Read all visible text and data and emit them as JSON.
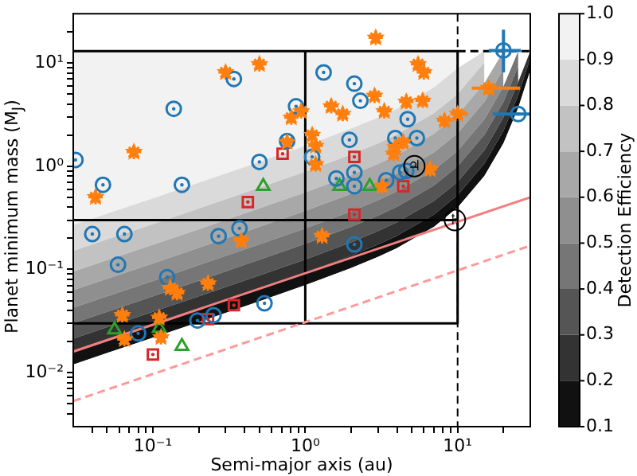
{
  "chart_data": {
    "type": "scatter",
    "log": "xy",
    "stacked": true,
    "grid": false,
    "legend": false,
    "xlabel": "Semi-major axis (au)",
    "ylabel": "Planet minimum mass (M$_{J}$)",
    "clabel": "Detection Efficiency",
    "xlim": [
      0.03,
      30
    ],
    "ylim": [
      0.003,
      30
    ],
    "xticks": [
      {
        "value": 0.04,
        "label": null
      },
      {
        "value": 0.05,
        "label": null
      },
      {
        "value": 0.06,
        "label": null
      },
      {
        "value": 0.07,
        "label": null
      },
      {
        "value": 0.08,
        "label": null
      },
      {
        "value": 0.09,
        "label": null
      },
      {
        "value": 0.1,
        "label": "10⁻¹"
      },
      {
        "value": 0.2,
        "label": null
      },
      {
        "value": 0.3,
        "label": null
      },
      {
        "value": 0.4,
        "label": null
      },
      {
        "value": 0.5,
        "label": null
      },
      {
        "value": 0.6,
        "label": null
      },
      {
        "value": 0.7,
        "label": null
      },
      {
        "value": 0.8,
        "label": null
      },
      {
        "value": 0.9,
        "label": null
      },
      {
        "value": 1,
        "label": "10⁰"
      },
      {
        "value": 2,
        "label": null
      },
      {
        "value": 3,
        "label": null
      },
      {
        "value": 4,
        "label": null
      },
      {
        "value": 5,
        "label": null
      },
      {
        "value": 6,
        "label": null
      },
      {
        "value": 7,
        "label": null
      },
      {
        "value": 8,
        "label": null
      },
      {
        "value": 9,
        "label": null
      },
      {
        "value": 10,
        "label": "10¹"
      },
      {
        "value": 20,
        "label": null
      }
    ],
    "yticks": [
      {
        "value": 0.004,
        "label": null
      },
      {
        "value": 0.005,
        "label": null
      },
      {
        "value": 0.006,
        "label": null
      },
      {
        "value": 0.007,
        "label": null
      },
      {
        "value": 0.008,
        "label": null
      },
      {
        "value": 0.009,
        "label": null
      },
      {
        "value": 0.01,
        "label": "10⁻²"
      },
      {
        "value": 0.02,
        "label": null
      },
      {
        "value": 0.03,
        "label": null
      },
      {
        "value": 0.04,
        "label": null
      },
      {
        "value": 0.05,
        "label": null
      },
      {
        "value": 0.06,
        "label": null
      },
      {
        "value": 0.07,
        "label": null
      },
      {
        "value": 0.08,
        "label": null
      },
      {
        "value": 0.09,
        "label": null
      },
      {
        "value": 0.1,
        "label": "10⁻¹"
      },
      {
        "value": 0.2,
        "label": null
      },
      {
        "value": 0.3,
        "label": null
      },
      {
        "value": 0.4,
        "label": null
      },
      {
        "value": 0.5,
        "label": null
      },
      {
        "value": 0.6,
        "label": null
      },
      {
        "value": 0.7,
        "label": null
      },
      {
        "value": 0.8,
        "label": null
      },
      {
        "value": 0.9,
        "label": null
      },
      {
        "value": 1,
        "label": "10⁰"
      },
      {
        "value": 2,
        "label": null
      },
      {
        "value": 3,
        "label": null
      },
      {
        "value": 4,
        "label": null
      },
      {
        "value": 5,
        "label": null
      },
      {
        "value": 6,
        "label": null
      },
      {
        "value": 7,
        "label": null
      },
      {
        "value": 8,
        "label": null
      },
      {
        "value": 9,
        "label": null
      },
      {
        "value": 10,
        "label": "10¹"
      },
      {
        "value": 20,
        "label": null
      }
    ],
    "clim": [
      0.1,
      1
    ],
    "cticks": [
      0.1,
      0.2,
      0.3,
      0.4,
      0.5,
      0.6,
      0.7,
      0.8,
      0.9,
      {
        "value": 1,
        "label": "1.0"
      }
    ],
    "ref_lines": [
      {
        "axis": "x",
        "value": 10,
        "line_style": "dashed",
        "color": "#000000"
      }
    ],
    "annotations": [
      {
        "text": "♃",
        "x": 5.2,
        "y": 1.0
      },
      {
        "text": "♄",
        "x": 9.6,
        "y": 0.3
      }
    ],
    "series": [
      {
        "type": "area",
        "color": "#ffffff",
        "x": [
          0.03,
          0.05,
          0.1,
          0.2,
          0.5,
          1,
          2,
          3,
          4,
          7,
          10,
          15,
          20,
          25,
          30
        ],
        "values": [
          0.012,
          0.0155,
          0.0218,
          0.0309,
          0.0492,
          0.0703,
          0.103,
          0.132,
          0.161,
          0.259,
          0.397,
          0.804,
          1.67,
          3.68,
          8.47
        ]
      },
      {
        "type": "area",
        "color": "#111111",
        "x": [
          0.03,
          0.05,
          0.1,
          0.2,
          0.5,
          1,
          2,
          3,
          4,
          7,
          10,
          15,
          20,
          25,
          30
        ],
        "values": [
          0.0038,
          0.0049,
          0.0069,
          0.0098,
          0.0156,
          0.0224,
          0.033,
          0.042,
          0.051,
          0.082,
          0.126,
          0.256,
          0.53,
          1.17,
          2.73
        ]
      },
      {
        "type": "area",
        "color": "#333333",
        "x": [
          0.03,
          0.05,
          0.1,
          0.2,
          0.5,
          1,
          2,
          3,
          4,
          7,
          10,
          15,
          20,
          25,
          30
        ],
        "values": [
          0.0055,
          0.0072,
          0.0101,
          0.0142,
          0.0227,
          0.0323,
          0.047,
          0.061,
          0.074,
          0.12,
          0.183,
          0.37,
          0.77,
          1.69,
          1.8
        ]
      },
      {
        "type": "area",
        "color": "#555555",
        "x": [
          0.03,
          0.05,
          0.1,
          0.2,
          0.5,
          1,
          2,
          3,
          4,
          7,
          10,
          15,
          20,
          25
        ],
        "values": [
          0.0088,
          0.0113,
          0.016,
          0.0227,
          0.0365,
          0.052,
          0.076,
          0.097,
          0.118,
          0.19,
          0.291,
          0.59,
          1.23,
          2.7
        ]
      },
      {
        "type": "area",
        "color": "#767676",
        "x": [
          0.03,
          0.05,
          0.1,
          0.2,
          0.5,
          1,
          2,
          3,
          4,
          7,
          10,
          15,
          20,
          25
        ],
        "values": [
          0.0125,
          0.0161,
          0.0225,
          0.0324,
          0.051,
          0.072,
          0.106,
          0.136,
          0.167,
          0.268,
          0.413,
          0.83,
          1.73,
          3.76
        ]
      },
      {
        "type": "area",
        "color": "#8f8f8f",
        "x": [
          0.03,
          0.05,
          0.1,
          0.2,
          0.5,
          1,
          2,
          3,
          4,
          7,
          10,
          15,
          20
        ],
        "values": [
          0.0204,
          0.0263,
          0.0367,
          0.052,
          0.083,
          0.12,
          0.176,
          0.225,
          0.274,
          0.441,
          0.67,
          1.37,
          2.83
        ]
      },
      {
        "type": "area",
        "color": "#a8a8a8",
        "x": [
          0.03,
          0.05,
          0.1,
          0.2,
          0.5,
          1,
          2,
          3,
          4,
          7,
          10,
          15,
          20
        ],
        "values": [
          0.0323,
          0.0417,
          0.059,
          0.083,
          0.133,
          0.189,
          0.277,
          0.357,
          0.435,
          0.7,
          1.07,
          2.17,
          4.24
        ]
      },
      {
        "type": "area",
        "color": "#c2c2c2",
        "x": [
          0.03,
          0.05,
          0.1,
          0.2,
          0.5,
          1,
          2,
          3,
          4,
          7,
          10,
          15
        ],
        "values": [
          0.0557,
          0.072,
          0.101,
          0.144,
          0.228,
          0.327,
          0.482,
          0.61,
          0.75,
          1.2,
          1.85,
          3.71
        ]
      },
      {
        "type": "area",
        "color": "#dadada",
        "x": [
          0.03,
          0.05,
          0.1,
          0.2,
          0.5,
          1,
          2,
          3,
          4,
          7,
          10,
          15
        ],
        "values": [
          0.118,
          0.152,
          0.214,
          0.303,
          0.481,
          0.685,
          1.01,
          1.3,
          1.57,
          2.54,
          3.89,
          2.9
        ]
      },
      {
        "type": "area",
        "color": "#f2f2f2",
        "x": [
          0.03,
          0.05,
          0.1,
          0.2,
          0.5,
          1,
          2,
          3,
          4,
          7,
          10
        ],
        "values": [
          12.73,
          12.65,
          12.51,
          12.31,
          11.9,
          11.43,
          10.69,
          10.04,
          9.4,
          7.2,
          4.11
        ]
      },
      {
        "type": "line",
        "color": "#f08080",
        "line_style": "solid",
        "x": [
          0.03,
          30
        ],
        "values": [
          0.016,
          0.5
        ]
      },
      {
        "type": "line",
        "color": "#ff9999",
        "line_style": "dashed",
        "x": [
          0.03,
          30
        ],
        "values": [
          0.0053,
          0.17
        ]
      },
      {
        "type": "line",
        "color": "#000000",
        "line_style": "solid",
        "x": [
          0.03,
          10,
          10,
          0.03
        ],
        "values": [
          13,
          13,
          0.03,
          0.03
        ]
      },
      {
        "type": "line",
        "color": "#000000",
        "line_style": "solid",
        "x": [
          0.03,
          10
        ],
        "values": [
          0.3,
          0.3
        ]
      },
      {
        "type": "line",
        "color": "#000000",
        "line_style": "solid",
        "x": [
          1,
          1
        ],
        "values": [
          0.03,
          13
        ]
      },
      {
        "type": "line",
        "color": "#000000",
        "line_style": "dashed",
        "x": [
          10,
          30
        ],
        "values": [
          13,
          13
        ]
      },
      {
        "marker": "circle",
        "color": "#1f77b4",
        "x": [
          0.031,
          0.047,
          0.155,
          0.137,
          0.34,
          0.5,
          0.76,
          0.87,
          1.11,
          0.04,
          0.065,
          0.27,
          0.37,
          1.32,
          2.1,
          2.3,
          4.7,
          5.4,
          1.95,
          3.9,
          2.1,
          2.1,
          1.6,
          3.4,
          4.2,
          4.6,
          0.059,
          0.124,
          0.08,
          0.196,
          0.25,
          0.54,
          2.1,
          20,
          25
        ],
        "values": [
          1.15,
          0.66,
          0.66,
          3.6,
          7.0,
          1.1,
          1.75,
          3.8,
          1.23,
          0.22,
          0.22,
          0.21,
          0.25,
          8.1,
          6.3,
          4.3,
          2.85,
          1.87,
          1.8,
          1.87,
          0.87,
          0.64,
          0.76,
          0.73,
          0.87,
          0.9,
          0.111,
          0.084,
          0.024,
          0.032,
          0.036,
          0.047,
          0.175,
          13.2,
          3.2
        ],
        "errors": [
          null,
          null,
          null,
          null,
          null,
          null,
          null,
          null,
          null,
          null,
          null,
          null,
          null,
          null,
          null,
          null,
          null,
          null,
          null,
          null,
          null,
          null,
          null,
          null,
          null,
          null,
          null,
          null,
          null,
          null,
          null,
          null,
          null,
          [
            8.1,
            21
          ],
          null
        ],
        "xerrors": [
          null,
          null,
          null,
          null,
          null,
          null,
          null,
          null,
          null,
          null,
          null,
          null,
          null,
          null,
          null,
          null,
          null,
          null,
          null,
          null,
          null,
          null,
          null,
          null,
          null,
          null,
          null,
          null,
          null,
          null,
          null,
          null,
          null,
          [
            16,
            26
          ],
          [
            17,
            30
          ]
        ]
      },
      {
        "marker": "star",
        "color": "#ff7f0e",
        "x": [
          0.3,
          0.5,
          0.075,
          0.042,
          0.81,
          0.94,
          0.76,
          1.11,
          1.17,
          1.17,
          2.9,
          5.5,
          6.0,
          2.85,
          4.6,
          5.9,
          3.3,
          1.48,
          1.76,
          8.2,
          4.4,
          3.9,
          3.8,
          6.6,
          3.2,
          1.29,
          0.38,
          0.23,
          0.13,
          0.144,
          0.063,
          0.11,
          0.065,
          0.113,
          10,
          16
        ],
        "values": [
          8.1,
          9.7,
          1.37,
          0.5,
          2.95,
          3.4,
          1.7,
          2.0,
          1.57,
          1.04,
          17.5,
          9.7,
          8.1,
          4.8,
          4.2,
          4.3,
          3.4,
          3.8,
          3.2,
          2.75,
          1.7,
          1.52,
          1.32,
          0.93,
          0.64,
          0.21,
          0.19,
          0.073,
          0.066,
          0.059,
          0.036,
          0.034,
          0.021,
          0.022,
          3.2,
          5.7
        ],
        "xerrors": [
          null,
          null,
          null,
          null,
          null,
          null,
          null,
          null,
          null,
          null,
          null,
          null,
          null,
          null,
          null,
          null,
          null,
          null,
          null,
          null,
          null,
          null,
          null,
          null,
          null,
          null,
          null,
          null,
          null,
          null,
          null,
          null,
          null,
          null,
          [
            9.1,
            11.7
          ],
          [
            12.4,
            25.7
          ]
        ]
      },
      {
        "marker": "square",
        "color": "#d62728",
        "x": [
          0.71,
          0.42,
          2.1,
          4.4,
          2.1,
          0.34,
          0.23,
          0.1
        ],
        "values": [
          1.32,
          0.45,
          1.23,
          0.64,
          0.34,
          0.045,
          0.033,
          0.015
        ]
      },
      {
        "marker": "triangle",
        "color": "#2ca02c",
        "x": [
          0.53,
          1.68,
          2.65,
          0.056,
          0.11,
          0.155
        ],
        "values": [
          0.64,
          0.64,
          0.64,
          0.026,
          0.027,
          0.018
        ]
      }
    ]
  }
}
